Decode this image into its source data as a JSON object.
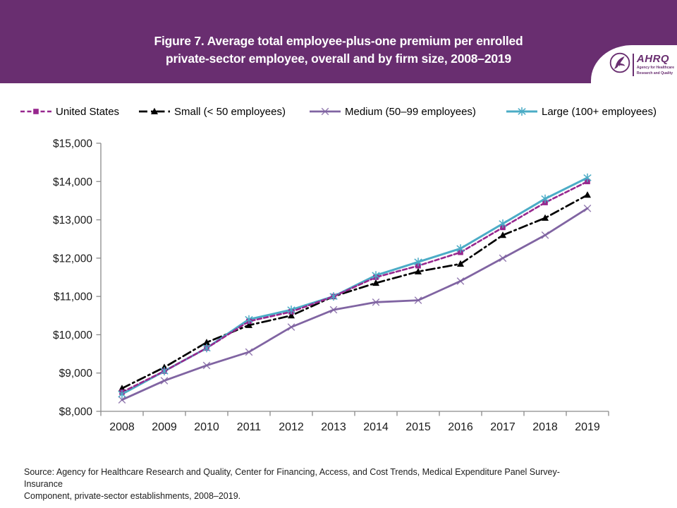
{
  "header": {
    "title_line1": "Figure 7. Average total employee-plus-one premium per enrolled",
    "title_line2": "private-sector employee, overall and by firm size, 2008–2019",
    "background_color": "#692E70",
    "logo_text": "AHRQ",
    "logo_tagline_line1": "Agency for Healthcare",
    "logo_tagline_line2": "Research and Quality"
  },
  "legend": {
    "items": [
      {
        "key": "us",
        "label": "United States",
        "x": 28
      },
      {
        "key": "small",
        "label": "Small (< 50 employees)",
        "x": 196
      },
      {
        "key": "medium",
        "label": "Medium (50–99 employees)",
        "x": 438
      },
      {
        "key": "large",
        "label": "Large (100+ employees)",
        "x": 717
      }
    ]
  },
  "chart_data": {
    "type": "line",
    "title": "Average total employee-plus-one premium per enrolled private-sector employee, overall and by firm size, 2008–2019",
    "xlabel": "",
    "ylabel": "",
    "x": [
      2008,
      2009,
      2010,
      2011,
      2012,
      2013,
      2014,
      2015,
      2016,
      2017,
      2018,
      2019
    ],
    "ylim": [
      8000,
      15000
    ],
    "ytick_step": 1000,
    "ytick_labels": [
      "$8,000",
      "$9,000",
      "$10,000",
      "$11,000",
      "$12,000",
      "$13,000",
      "$14,000",
      "$15,000"
    ],
    "grid": false,
    "legend_position": "top",
    "series": [
      {
        "key": "us",
        "name": "United States",
        "color": "#97278E",
        "marker": "square",
        "line_style": "dashed",
        "values": [
          8500,
          9050,
          9650,
          10350,
          10600,
          11000,
          11500,
          11800,
          12150,
          12800,
          13450,
          14000
        ]
      },
      {
        "key": "small",
        "name": "Small (< 50 employees)",
        "color": "#000000",
        "marker": "triangle",
        "line_style": "dash-dot",
        "values": [
          8600,
          9150,
          9800,
          10250,
          10500,
          11000,
          11350,
          11650,
          11850,
          12600,
          13050,
          13650
        ]
      },
      {
        "key": "medium",
        "name": "Medium (50–99 employees)",
        "color": "#8064A2",
        "marker": "x",
        "line_style": "solid",
        "values": [
          8300,
          8800,
          9200,
          9550,
          10200,
          10650,
          10850,
          10900,
          11400,
          12000,
          12600,
          13300
        ]
      },
      {
        "key": "large",
        "name": "Large (100+ employees)",
        "color": "#4BACC6",
        "marker": "asterisk",
        "line_style": "solid",
        "values": [
          8450,
          9050,
          9650,
          10400,
          10650,
          11000,
          11550,
          11900,
          12250,
          12900,
          13550,
          14100
        ]
      }
    ],
    "axis_color": "#8A8A8A"
  },
  "source": {
    "line1": "Source: Agency for Healthcare Research and Quality, Center for Financing, Access, and Cost Trends, Medical Expenditure Panel Survey-Insurance",
    "line2": "Component, private-sector establishments, 2008–2019."
  }
}
